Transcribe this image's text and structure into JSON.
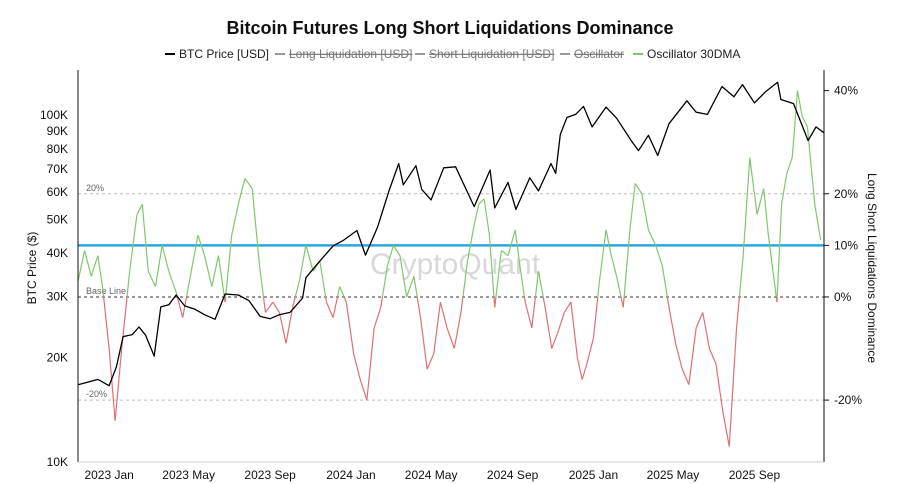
{
  "chart_data": {
    "type": "line",
    "title": "Bitcoin Futures Long Short Liquidations Dominance",
    "watermark": "CryptoQuant",
    "legend_position": "top",
    "legend": [
      {
        "label": "BTC Price [USD]",
        "color": "#000000",
        "active": true
      },
      {
        "label": "Long Liquidation [USD]",
        "color": "#999999",
        "active": false
      },
      {
        "label": "Short Liquidation [USD]",
        "color": "#999999",
        "active": false
      },
      {
        "label": "Oscillator",
        "color": "#999999",
        "active": false
      },
      {
        "label": "Oscillator 30DMA",
        "color": "#7ec86b",
        "active": true
      }
    ],
    "x_axis": {
      "type": "date",
      "range": [
        "2022-11-15",
        "2025-12-15"
      ],
      "ticks": [
        {
          "date": "2023-01-01",
          "label": "2023 Jan"
        },
        {
          "date": "2023-05-01",
          "label": "2023 May"
        },
        {
          "date": "2023-09-01",
          "label": "2023 Sep"
        },
        {
          "date": "2024-01-01",
          "label": "2024 Jan"
        },
        {
          "date": "2024-05-01",
          "label": "2024 May"
        },
        {
          "date": "2024-09-01",
          "label": "2024 Sep"
        },
        {
          "date": "2025-01-01",
          "label": "2025 Jan"
        },
        {
          "date": "2025-05-01",
          "label": "2025 May"
        },
        {
          "date": "2025-09-01",
          "label": "2025 Sep"
        }
      ]
    },
    "y_left": {
      "label": "BTC Price ($)",
      "scale": "log",
      "range": [
        10000,
        135000
      ],
      "ticks": [
        {
          "value": 10000,
          "label": "10K"
        },
        {
          "value": 20000,
          "label": "20K"
        },
        {
          "value": 30000,
          "label": "30K"
        },
        {
          "value": 40000,
          "label": "40K"
        },
        {
          "value": 50000,
          "label": "50K"
        },
        {
          "value": 60000,
          "label": "60K"
        },
        {
          "value": 70000,
          "label": "70K"
        },
        {
          "value": 80000,
          "label": "80K"
        },
        {
          "value": 90000,
          "label": "90K"
        },
        {
          "value": 100000,
          "label": "100K"
        }
      ]
    },
    "y_right": {
      "label": "Long Short Liquidations Dominance",
      "unit": "%",
      "range": [
        -32,
        44
      ],
      "ticks": [
        {
          "value": 40,
          "label": "40%"
        },
        {
          "value": 20,
          "label": "20%"
        },
        {
          "value": 10,
          "label": "10%"
        },
        {
          "value": 0,
          "label": "0%"
        },
        {
          "value": -20,
          "label": "-20%"
        }
      ]
    },
    "reference_lines": [
      {
        "value": 20,
        "label": "20%",
        "style": "dashed"
      },
      {
        "value": 0,
        "label": "Base Line",
        "style": "dashed"
      },
      {
        "value": -20,
        "label": "-20%",
        "style": "dashed"
      },
      {
        "value": 10,
        "label": "",
        "style": "solid",
        "color": "#29a8e0"
      }
    ],
    "series": [
      {
        "name": "BTC Price [USD]",
        "axis": "left",
        "color": "#000000",
        "points": [
          [
            "2022-11-15",
            16700
          ],
          [
            "2022-12-15",
            17300
          ],
          [
            "2023-01-01",
            16600
          ],
          [
            "2023-01-12",
            18800
          ],
          [
            "2023-01-22",
            23000
          ],
          [
            "2023-02-05",
            23300
          ],
          [
            "2023-02-15",
            24500
          ],
          [
            "2023-02-25",
            23200
          ],
          [
            "2023-03-10",
            20200
          ],
          [
            "2023-03-20",
            28000
          ],
          [
            "2023-04-01",
            28400
          ],
          [
            "2023-04-12",
            30300
          ],
          [
            "2023-04-25",
            28200
          ],
          [
            "2023-05-10",
            27600
          ],
          [
            "2023-05-25",
            26600
          ],
          [
            "2023-06-10",
            25800
          ],
          [
            "2023-06-25",
            30500
          ],
          [
            "2023-07-15",
            30300
          ],
          [
            "2023-07-31",
            29200
          ],
          [
            "2023-08-17",
            26300
          ],
          [
            "2023-09-01",
            25900
          ],
          [
            "2023-09-15",
            26600
          ],
          [
            "2023-10-01",
            27000
          ],
          [
            "2023-10-20",
            29700
          ],
          [
            "2023-10-25",
            34000
          ],
          [
            "2023-11-10",
            37000
          ],
          [
            "2023-12-05",
            42000
          ],
          [
            "2023-12-20",
            43500
          ],
          [
            "2024-01-10",
            46500
          ],
          [
            "2024-01-23",
            39500
          ],
          [
            "2024-02-10",
            47500
          ],
          [
            "2024-02-28",
            61000
          ],
          [
            "2024-03-13",
            72500
          ],
          [
            "2024-03-20",
            63000
          ],
          [
            "2024-04-08",
            71500
          ],
          [
            "2024-04-17",
            61000
          ],
          [
            "2024-05-01",
            57000
          ],
          [
            "2024-05-20",
            70500
          ],
          [
            "2024-06-07",
            71000
          ],
          [
            "2024-07-05",
            54500
          ],
          [
            "2024-07-29",
            69500
          ],
          [
            "2024-08-05",
            54000
          ],
          [
            "2024-08-25",
            64000
          ],
          [
            "2024-09-06",
            53500
          ],
          [
            "2024-09-27",
            66000
          ],
          [
            "2024-10-10",
            60500
          ],
          [
            "2024-10-29",
            72500
          ],
          [
            "2024-11-05",
            68000
          ],
          [
            "2024-11-12",
            88000
          ],
          [
            "2024-11-22",
            98500
          ],
          [
            "2024-12-05",
            100500
          ],
          [
            "2024-12-17",
            106000
          ],
          [
            "2024-12-30",
            92500
          ],
          [
            "2025-01-20",
            105500
          ],
          [
            "2025-02-05",
            98000
          ],
          [
            "2025-02-27",
            84500
          ],
          [
            "2025-03-10",
            79000
          ],
          [
            "2025-03-25",
            87500
          ],
          [
            "2025-04-08",
            76500
          ],
          [
            "2025-04-25",
            94500
          ],
          [
            "2025-05-22",
            110000
          ],
          [
            "2025-06-05",
            102000
          ],
          [
            "2025-06-22",
            100500
          ],
          [
            "2025-07-14",
            121000
          ],
          [
            "2025-08-01",
            113000
          ],
          [
            "2025-08-14",
            122500
          ],
          [
            "2025-09-01",
            108500
          ],
          [
            "2025-09-18",
            117000
          ],
          [
            "2025-10-06",
            124500
          ],
          [
            "2025-10-11",
            111000
          ],
          [
            "2025-10-30",
            108000
          ],
          [
            "2025-11-05",
            101000
          ],
          [
            "2025-11-21",
            84500
          ],
          [
            "2025-12-03",
            92500
          ],
          [
            "2025-12-15",
            89000
          ]
        ]
      },
      {
        "name": "Oscillator 30DMA",
        "axis": "right",
        "color_positive": "#7ec86b",
        "color_negative": "#e07070",
        "points": [
          [
            "2022-11-15",
            3
          ],
          [
            "2022-11-25",
            9
          ],
          [
            "2022-12-05",
            4
          ],
          [
            "2022-12-15",
            8
          ],
          [
            "2022-12-22",
            2
          ],
          [
            "2023-01-01",
            -10
          ],
          [
            "2023-01-10",
            -24
          ],
          [
            "2023-01-20",
            -10
          ],
          [
            "2023-02-01",
            5
          ],
          [
            "2023-02-12",
            16
          ],
          [
            "2023-02-20",
            18
          ],
          [
            "2023-03-01",
            5
          ],
          [
            "2023-03-12",
            2
          ],
          [
            "2023-03-22",
            10
          ],
          [
            "2023-04-01",
            5
          ],
          [
            "2023-04-12",
            1
          ],
          [
            "2023-04-22",
            -4
          ],
          [
            "2023-05-05",
            5
          ],
          [
            "2023-05-15",
            12
          ],
          [
            "2023-05-25",
            8
          ],
          [
            "2023-06-05",
            2
          ],
          [
            "2023-06-15",
            8
          ],
          [
            "2023-06-25",
            -1
          ],
          [
            "2023-07-05",
            12
          ],
          [
            "2023-07-15",
            18
          ],
          [
            "2023-07-25",
            23
          ],
          [
            "2023-08-05",
            21
          ],
          [
            "2023-08-16",
            6
          ],
          [
            "2023-08-25",
            -3
          ],
          [
            "2023-09-05",
            -1
          ],
          [
            "2023-09-15",
            -3
          ],
          [
            "2023-09-25",
            -9
          ],
          [
            "2023-10-05",
            -2
          ],
          [
            "2023-10-15",
            3
          ],
          [
            "2023-10-25",
            10
          ],
          [
            "2023-11-05",
            5
          ],
          [
            "2023-11-15",
            7
          ],
          [
            "2023-11-25",
            -1
          ],
          [
            "2023-12-05",
            -4
          ],
          [
            "2023-12-15",
            2
          ],
          [
            "2023-12-25",
            -1
          ],
          [
            "2024-01-05",
            -11
          ],
          [
            "2024-01-15",
            -16
          ],
          [
            "2024-01-25",
            -20
          ],
          [
            "2024-02-05",
            -6
          ],
          [
            "2024-02-15",
            -2
          ],
          [
            "2024-02-25",
            6
          ],
          [
            "2024-03-05",
            10
          ],
          [
            "2024-03-15",
            8
          ],
          [
            "2024-03-25",
            0
          ],
          [
            "2024-04-05",
            4
          ],
          [
            "2024-04-15",
            -4
          ],
          [
            "2024-04-25",
            -14
          ],
          [
            "2024-05-05",
            -11
          ],
          [
            "2024-05-15",
            -1
          ],
          [
            "2024-05-25",
            -6
          ],
          [
            "2024-06-05",
            -10
          ],
          [
            "2024-06-15",
            -3
          ],
          [
            "2024-06-25",
            7
          ],
          [
            "2024-07-05",
            14
          ],
          [
            "2024-07-12",
            18
          ],
          [
            "2024-07-20",
            19
          ],
          [
            "2024-07-28",
            12
          ],
          [
            "2024-08-05",
            -2
          ],
          [
            "2024-08-15",
            9
          ],
          [
            "2024-08-25",
            8
          ],
          [
            "2024-09-05",
            13
          ],
          [
            "2024-09-12",
            6
          ],
          [
            "2024-09-20",
            -1
          ],
          [
            "2024-09-30",
            -6
          ],
          [
            "2024-10-10",
            5
          ],
          [
            "2024-10-20",
            -2
          ],
          [
            "2024-10-30",
            -10
          ],
          [
            "2024-11-08",
            -7
          ],
          [
            "2024-11-18",
            -3
          ],
          [
            "2024-11-28",
            -1
          ],
          [
            "2024-12-08",
            -12
          ],
          [
            "2024-12-15",
            -16
          ],
          [
            "2024-12-22",
            -13
          ],
          [
            "2025-01-01",
            -8
          ],
          [
            "2025-01-10",
            3
          ],
          [
            "2025-01-20",
            13
          ],
          [
            "2025-01-28",
            8
          ],
          [
            "2025-02-05",
            4
          ],
          [
            "2025-02-15",
            -2
          ],
          [
            "2025-02-25",
            13
          ],
          [
            "2025-03-05",
            22
          ],
          [
            "2025-03-15",
            20
          ],
          [
            "2025-03-25",
            13
          ],
          [
            "2025-04-05",
            10
          ],
          [
            "2025-04-15",
            6
          ],
          [
            "2025-04-25",
            -2
          ],
          [
            "2025-05-05",
            -9
          ],
          [
            "2025-05-15",
            -14
          ],
          [
            "2025-05-25",
            -17
          ],
          [
            "2025-06-05",
            -6
          ],
          [
            "2025-06-15",
            -3
          ],
          [
            "2025-06-25",
            -10
          ],
          [
            "2025-07-05",
            -13
          ],
          [
            "2025-07-15",
            -22
          ],
          [
            "2025-07-25",
            -29
          ],
          [
            "2025-08-05",
            -6
          ],
          [
            "2025-08-15",
            8
          ],
          [
            "2025-08-25",
            27
          ],
          [
            "2025-09-05",
            16
          ],
          [
            "2025-09-15",
            21
          ],
          [
            "2025-09-22",
            12
          ],
          [
            "2025-10-01",
            3
          ],
          [
            "2025-10-05",
            -1
          ],
          [
            "2025-10-12",
            18
          ],
          [
            "2025-10-20",
            24
          ],
          [
            "2025-10-28",
            27
          ],
          [
            "2025-11-05",
            40
          ],
          [
            "2025-11-12",
            35
          ],
          [
            "2025-11-20",
            33
          ],
          [
            "2025-12-01",
            18
          ],
          [
            "2025-12-10",
            11
          ]
        ]
      }
    ]
  }
}
